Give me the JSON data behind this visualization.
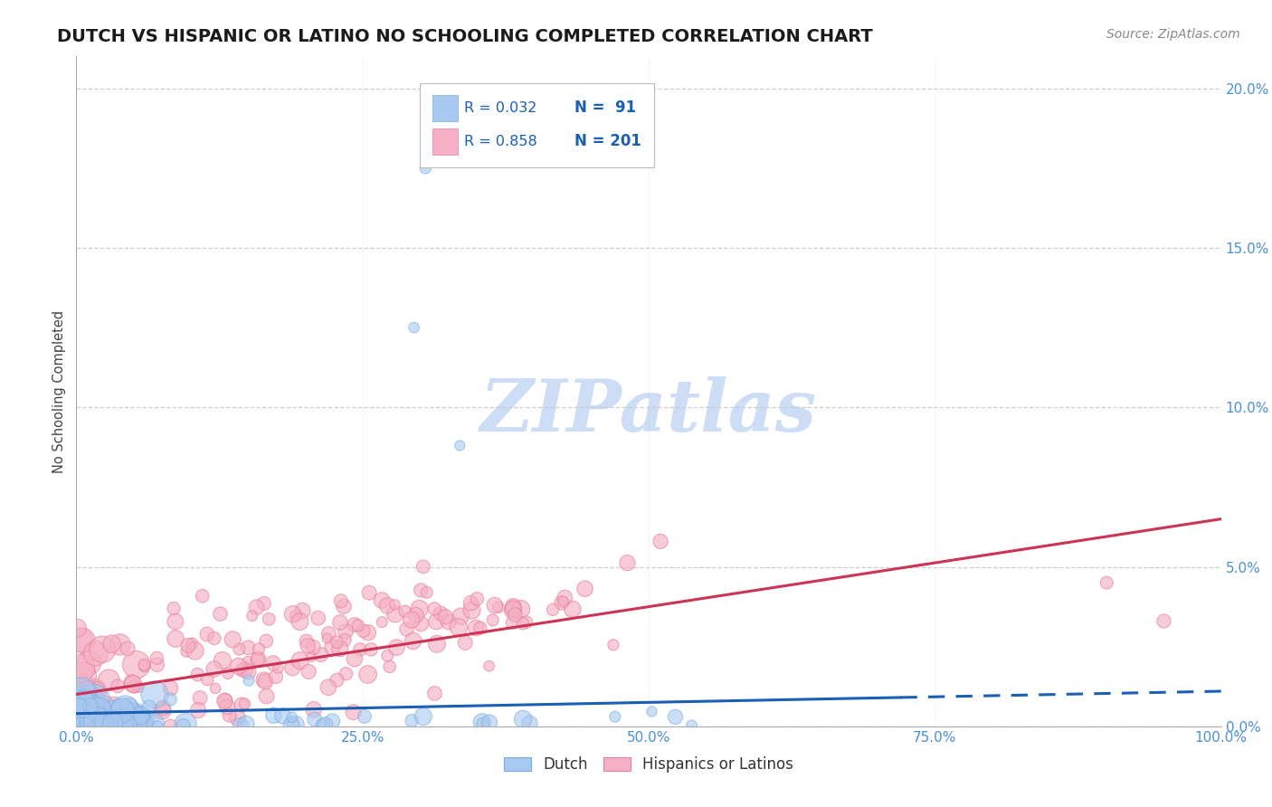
{
  "title": "DUTCH VS HISPANIC OR LATINO NO SCHOOLING COMPLETED CORRELATION CHART",
  "source_text": "Source: ZipAtlas.com",
  "ylabel": "No Schooling Completed",
  "watermark": "ZIPatlas",
  "xlim": [
    0.0,
    1.0
  ],
  "ylim": [
    0.0,
    0.21
  ],
  "yticks": [
    0.0,
    0.05,
    0.1,
    0.15,
    0.2
  ],
  "xticks": [
    0.0,
    0.25,
    0.5,
    0.75,
    1.0
  ],
  "xtick_labels": [
    "0.0%",
    "25.0%",
    "50.0%",
    "75.0%",
    "100.0%"
  ],
  "ytick_labels": [
    "0.0%",
    "5.0%",
    "10.0%",
    "15.0%",
    "20.0%"
  ],
  "dutch_color": "#a8c8f0",
  "dutch_edge_color": "#7aade0",
  "hispanic_color": "#f5b0c5",
  "hispanic_edge_color": "#e8809a",
  "dutch_line_color": "#1a5fb4",
  "hispanic_line_color": "#cc3355",
  "dutch_R": 0.032,
  "dutch_N": 91,
  "hispanic_R": 0.858,
  "hispanic_N": 201,
  "legend_label_dutch": "Dutch",
  "legend_label_hispanic": "Hispanics or Latinos",
  "background_color": "#ffffff",
  "grid_color": "#c8c8c8",
  "title_color": "#1a1a1a",
  "axis_label_color": "#444444",
  "tick_label_color": "#4a90d9",
  "watermark_color": "#ccddf5",
  "legend_text_color": "#1a5fb4",
  "source_color": "#888888"
}
